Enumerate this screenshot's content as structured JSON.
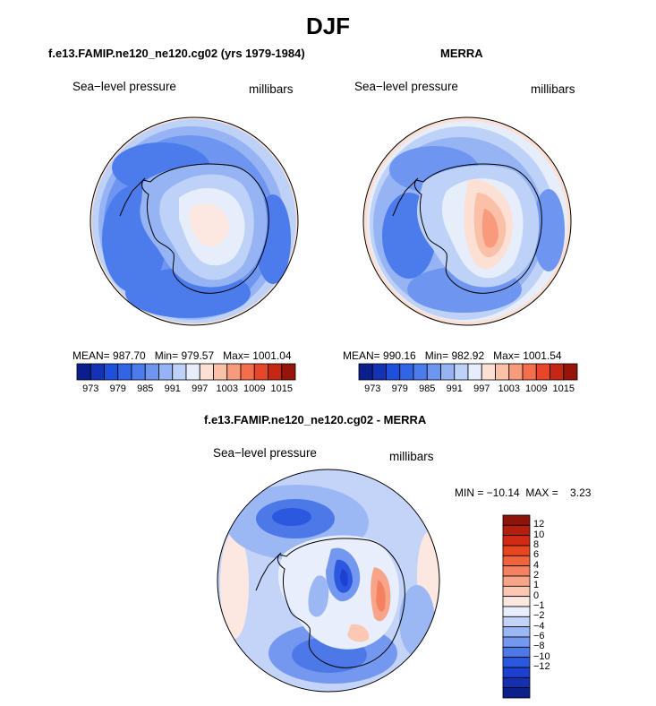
{
  "title": "DJF",
  "panels": [
    {
      "id": "model",
      "title": "f.e13.FAMIP.ne120_ne120.cg02 (yrs 1979-1984)",
      "variable": "Sea−level pressure",
      "units": "millibars",
      "stats": {
        "mean_label": "MEAN=",
        "mean": "987.70",
        "min_label": "Min=",
        "min": "979.57",
        "max_label": "Max=",
        "max": "1001.04"
      }
    },
    {
      "id": "merra",
      "title": "MERRA",
      "variable": "Sea−level pressure",
      "units": "millibars",
      "stats": {
        "mean_label": "MEAN=",
        "mean": "990.16",
        "min_label": "Min=",
        "min": "982.92",
        "max_label": "Max=",
        "max": "1001.54"
      }
    },
    {
      "id": "diff",
      "title": "f.e13.FAMIP.ne120_ne120.cg02 - MERRA",
      "variable": "Sea−level pressure",
      "units": "millibars",
      "stats_text": "MIN = −10.14  MAX =    3.23"
    }
  ],
  "colorbar_abs": {
    "colors": [
      "#0a1e8c",
      "#1432b4",
      "#1e50dc",
      "#3264e6",
      "#4c7cec",
      "#6e96f0",
      "#96b4f4",
      "#bed2f8",
      "#e6eefc",
      "#fce0d4",
      "#fac0a8",
      "#f89a7c",
      "#f46e4c",
      "#e8462a",
      "#c42814",
      "#961408"
    ],
    "labels": [
      "973",
      "979",
      "985",
      "991",
      "997",
      "1003",
      "1009",
      "1015"
    ]
  },
  "colorbar_diff": {
    "colors": [
      "#8c1408",
      "#b41e0c",
      "#d22a14",
      "#e8461e",
      "#f0643c",
      "#f48260",
      "#f8a488",
      "#fcc8b4",
      "#fce8e0",
      "#e8eefc",
      "#c4d4f8",
      "#9cb8f4",
      "#7498f0",
      "#4c78e8",
      "#2c58e0",
      "#1c40d0",
      "#1430b0",
      "#0c208c"
    ],
    "labels": [
      "12",
      "10",
      "8",
      "6",
      "4",
      "2",
      "1",
      "0",
      "−1",
      "−2",
      "−4",
      "−6",
      "−8",
      "−10",
      "−12"
    ]
  }
}
